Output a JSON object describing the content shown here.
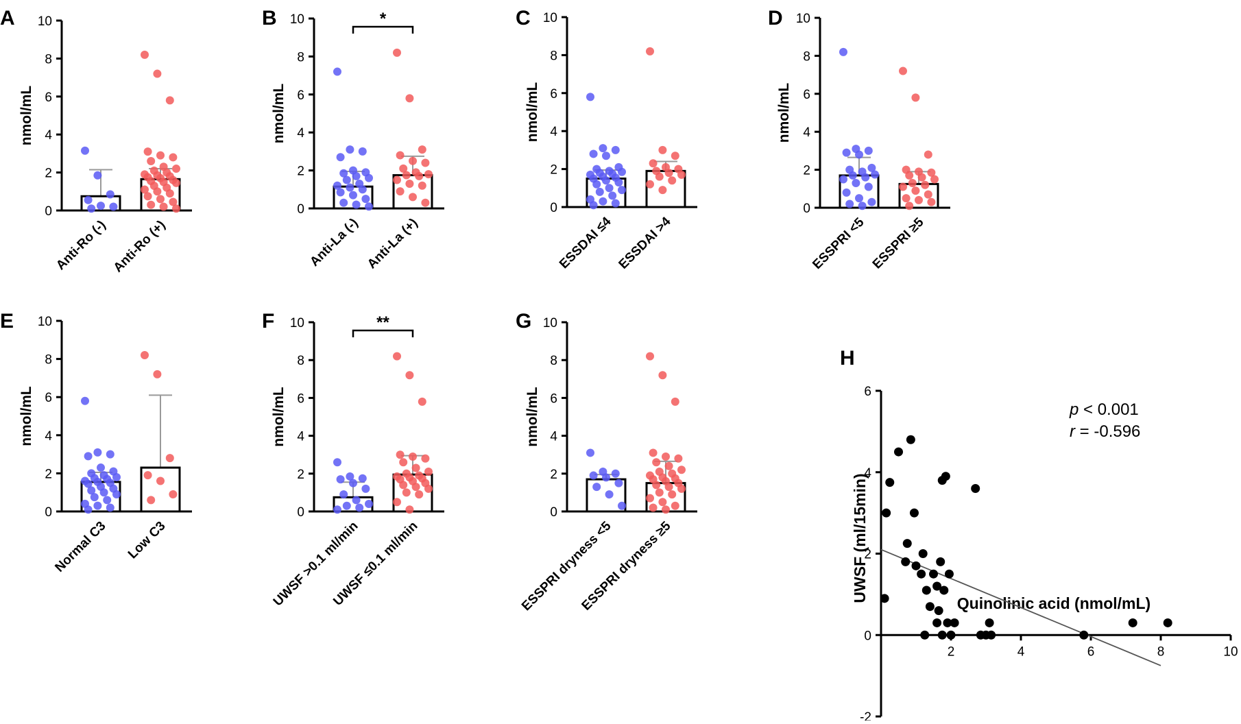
{
  "figure": {
    "colors": {
      "group1": "#5B5BF5",
      "group2": "#F25A5A",
      "axis": "#000000",
      "errorbar": "#999999",
      "scatter": "#000000"
    }
  },
  "chart_data": [
    {
      "panel": "A",
      "type": "bar",
      "ylabel": "nmol/mL",
      "ylim": [
        0,
        10
      ],
      "yticks": [
        "0",
        "2",
        "4",
        "6",
        "8",
        "10"
      ],
      "categories": [
        "Anti-Ro (-)",
        "Anti-Ro (+)"
      ],
      "groups": [
        {
          "name": "Anti-Ro (-)",
          "mean": 0.75,
          "err_upper": 2.15,
          "points": [
            3.15,
            1.85,
            0.85,
            0.55,
            0.25,
            0.2,
            0.1
          ]
        },
        {
          "name": "Anti-Ro (+)",
          "mean": 1.65,
          "err_upper": 2.2,
          "points": [
            8.2,
            7.2,
            5.8,
            3.1,
            2.9,
            2.8,
            2.6,
            2.3,
            2.2,
            2.1,
            2.0,
            1.9,
            1.85,
            1.8,
            1.75,
            1.7,
            1.6,
            1.55,
            1.5,
            1.45,
            1.3,
            1.2,
            1.1,
            1.0,
            0.9,
            0.75,
            0.6,
            0.45,
            0.3,
            0.2,
            0.1
          ]
        }
      ]
    },
    {
      "panel": "B",
      "type": "bar",
      "ylabel": "nmol/mL",
      "ylim": [
        0,
        10
      ],
      "yticks": [
        "0",
        "2",
        "4",
        "6",
        "8",
        "10"
      ],
      "categories": [
        "Anti-La (-)",
        "Anti-La (+)"
      ],
      "significance": "*",
      "groups": [
        {
          "name": "Anti-La (-)",
          "mean": 1.15,
          "err_upper": 1.95,
          "points": [
            7.2,
            3.1,
            3.0,
            2.7,
            2.0,
            1.9,
            1.85,
            1.7,
            1.6,
            1.5,
            1.3,
            1.2,
            1.1,
            1.0,
            0.85,
            0.7,
            0.5,
            0.3,
            0.2,
            0.1
          ]
        },
        {
          "name": "Anti-La (+)",
          "mean": 1.75,
          "err_upper": 2.75,
          "points": [
            8.2,
            5.8,
            3.1,
            2.8,
            2.5,
            2.4,
            2.1,
            1.9,
            1.8,
            1.75,
            1.7,
            1.5,
            1.3,
            1.2,
            0.9,
            0.6,
            0.3
          ]
        }
      ]
    },
    {
      "panel": "C",
      "type": "bar",
      "ylabel": "nmol/mL",
      "ylim": [
        0,
        10
      ],
      "yticks": [
        "0",
        "2",
        "4",
        "6",
        "8",
        "10"
      ],
      "categories": [
        "ESSDAI ≤4",
        "ESSDAI >4"
      ],
      "groups": [
        {
          "name": "ESSDAI ≤4",
          "mean": 1.5,
          "err_upper": 1.95,
          "points": [
            5.8,
            3.1,
            3.0,
            2.8,
            2.7,
            2.1,
            2.0,
            1.9,
            1.85,
            1.8,
            1.75,
            1.7,
            1.6,
            1.55,
            1.5,
            1.4,
            1.3,
            1.2,
            1.0,
            0.9,
            0.8,
            0.6,
            0.4,
            0.3,
            0.2,
            0.1
          ]
        },
        {
          "name": "ESSDAI >4",
          "mean": 1.9,
          "err_upper": 2.4,
          "points": [
            8.2,
            3.0,
            2.7,
            2.3,
            2.1,
            2.0,
            1.9,
            1.8,
            1.7,
            1.6,
            1.4,
            1.2,
            0.9
          ]
        }
      ]
    },
    {
      "panel": "D",
      "type": "bar",
      "ylabel": "nmol/mL",
      "ylim": [
        0,
        10
      ],
      "yticks": [
        "0",
        "2",
        "4",
        "6",
        "8",
        "10"
      ],
      "categories": [
        "ESSPRI <5",
        "ESSPRI ≥5"
      ],
      "groups": [
        {
          "name": "ESSPRI <5",
          "mean": 1.7,
          "err_upper": 2.65,
          "points": [
            8.2,
            3.1,
            3.0,
            2.9,
            2.8,
            2.1,
            2.0,
            1.9,
            1.75,
            1.7,
            1.6,
            1.5,
            1.3,
            1.1,
            0.8,
            0.5,
            0.3,
            0.2,
            0.1
          ]
        },
        {
          "name": "ESSPRI ≥5",
          "mean": 1.25,
          "err_upper": 1.9,
          "points": [
            7.2,
            5.8,
            2.8,
            2.0,
            1.9,
            1.85,
            1.7,
            1.6,
            1.5,
            1.3,
            1.2,
            1.1,
            0.9,
            0.7,
            0.5,
            0.4,
            0.3,
            0.1
          ]
        }
      ]
    },
    {
      "panel": "E",
      "type": "bar",
      "ylabel": "nmol/mL",
      "ylim": [
        0,
        10
      ],
      "yticks": [
        "0",
        "2",
        "4",
        "6",
        "8",
        "10"
      ],
      "categories": [
        "Normal C3",
        "Low C3"
      ],
      "groups": [
        {
          "name": "Normal C3",
          "mean": 1.55,
          "err_upper": 2.05,
          "points": [
            5.8,
            3.1,
            3.0,
            2.9,
            2.3,
            2.1,
            2.0,
            1.9,
            1.8,
            1.75,
            1.7,
            1.6,
            1.55,
            1.5,
            1.45,
            1.3,
            1.2,
            1.1,
            1.0,
            0.9,
            0.75,
            0.6,
            0.4,
            0.3,
            0.2,
            0.1
          ]
        },
        {
          "name": "Low C3",
          "mean": 2.3,
          "err_upper": 6.1,
          "points": [
            8.2,
            7.2,
            2.8,
            1.9,
            1.6,
            0.9,
            0.6
          ]
        }
      ]
    },
    {
      "panel": "F",
      "type": "bar",
      "ylabel": "nmol/mL",
      "ylim": [
        0,
        10
      ],
      "yticks": [
        "0",
        "2",
        "4",
        "6",
        "8",
        "10"
      ],
      "categories": [
        "UWSF >0.1 ml/min",
        "UWSF ≤0.1 ml/min"
      ],
      "significance": "**",
      "groups": [
        {
          "name": "UWSF >0.1 ml/min",
          "mean": 0.75,
          "err_upper": 1.55,
          "points": [
            2.6,
            1.85,
            1.75,
            1.7,
            1.5,
            1.2,
            0.9,
            0.6,
            0.4,
            0.3,
            0.2,
            0.1
          ]
        },
        {
          "name": "UWSF ≤0.1 ml/min",
          "mean": 1.95,
          "err_upper": 2.95,
          "points": [
            8.2,
            7.2,
            5.8,
            3.0,
            2.9,
            2.8,
            2.6,
            2.3,
            2.1,
            2.0,
            1.9,
            1.85,
            1.8,
            1.75,
            1.7,
            1.6,
            1.5,
            1.4,
            1.3,
            1.2,
            1.0,
            0.9,
            0.5,
            0.1
          ]
        }
      ]
    },
    {
      "panel": "G",
      "type": "bar",
      "ylabel": "nmol/mL",
      "ylim": [
        0,
        10
      ],
      "yticks": [
        "0",
        "2",
        "4",
        "6",
        "8",
        "10"
      ],
      "categories": [
        "ESSPRI dryness <5",
        "ESSPRI dryness ≥5"
      ],
      "groups": [
        {
          "name": "ESSPRI dryness <5",
          "mean": 1.7,
          "err_upper": 1.95,
          "points": [
            3.1,
            2.1,
            2.0,
            1.9,
            1.8,
            1.5,
            1.3,
            0.9,
            0.3
          ]
        },
        {
          "name": "ESSPRI dryness ≥5",
          "mean": 1.5,
          "err_upper": 2.65,
          "points": [
            8.2,
            7.2,
            5.8,
            3.1,
            2.9,
            2.8,
            2.6,
            2.4,
            2.2,
            2.1,
            2.0,
            1.9,
            1.8,
            1.75,
            1.7,
            1.6,
            1.5,
            1.4,
            1.3,
            1.2,
            1.0,
            0.9,
            0.7,
            0.5,
            0.3,
            0.2,
            0.1
          ]
        }
      ]
    },
    {
      "panel": "H",
      "type": "scatter",
      "xlabel": "Quinolinic acid (nmol/mL)",
      "ylabel": "UWSF (ml/15min)",
      "xlim": [
        0,
        10
      ],
      "ylim": [
        -2,
        6
      ],
      "xticks": [
        "2",
        "4",
        "6",
        "8",
        "10"
      ],
      "yticks": [
        "-2",
        "0",
        "2",
        "4",
        "6"
      ],
      "stats": {
        "p_label": "p",
        "p_value": " < 0.001",
        "r_label": "r",
        "r_value": " = -0.596"
      },
      "regression": {
        "x1": 0,
        "y1": 2.1,
        "x2": 8.0,
        "y2": -0.75
      },
      "points": [
        [
          0.1,
          0.9
        ],
        [
          0.15,
          3.0
        ],
        [
          0.25,
          3.75
        ],
        [
          0.5,
          4.5
        ],
        [
          0.75,
          2.25
        ],
        [
          0.85,
          4.8
        ],
        [
          0.95,
          3.0
        ],
        [
          0.7,
          1.8
        ],
        [
          1.0,
          1.7
        ],
        [
          1.2,
          2.0
        ],
        [
          1.15,
          1.5
        ],
        [
          1.3,
          1.1
        ],
        [
          1.4,
          0.7
        ],
        [
          1.25,
          0.0
        ],
        [
          1.5,
          1.5
        ],
        [
          1.6,
          1.2
        ],
        [
          1.65,
          0.6
        ],
        [
          1.7,
          1.8
        ],
        [
          1.75,
          3.8
        ],
        [
          1.85,
          3.9
        ],
        [
          1.8,
          1.1
        ],
        [
          1.6,
          0.3
        ],
        [
          1.75,
          0.0
        ],
        [
          1.9,
          0.3
        ],
        [
          1.95,
          1.5
        ],
        [
          2.1,
          0.3
        ],
        [
          2.0,
          0.0
        ],
        [
          2.7,
          3.6
        ],
        [
          2.85,
          0.0
        ],
        [
          3.0,
          0.0
        ],
        [
          3.1,
          0.3
        ],
        [
          3.15,
          0.0
        ],
        [
          5.8,
          0.0
        ],
        [
          7.2,
          0.3
        ],
        [
          8.2,
          0.3
        ]
      ]
    }
  ]
}
